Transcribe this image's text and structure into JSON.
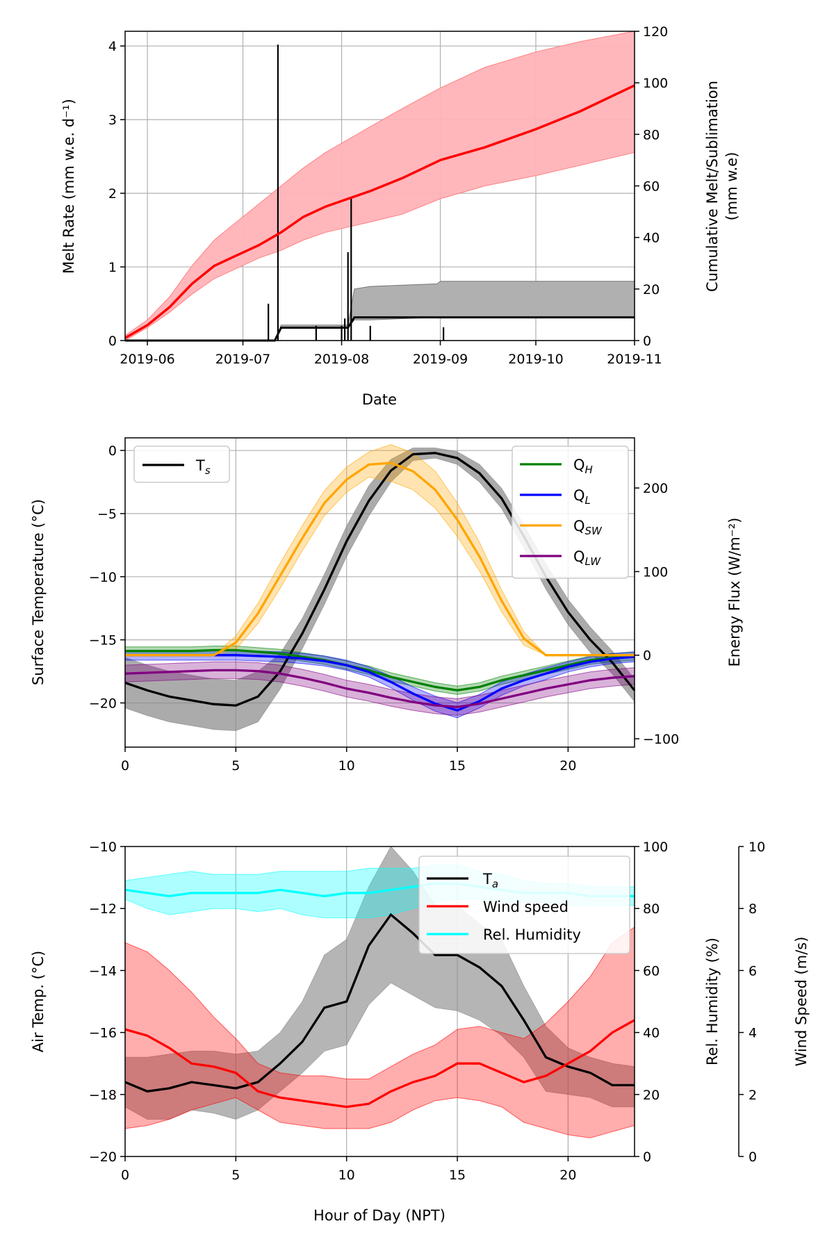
{
  "chart_data": [
    {
      "type": "line",
      "panel": "melt",
      "xlabel": "Date",
      "ylabel": "Melt Rate (mm w.e. d⁻¹)",
      "y2label": "Cumulative Melt/Sublimation",
      "y2label_units": "(mm w.e)",
      "xlim": [
        "2019-05-25",
        "2019-11-01"
      ],
      "ylim": [
        0,
        4.2
      ],
      "y2lim": [
        0,
        120
      ],
      "x_ticks": [
        "2019-06",
        "2019-07",
        "2019-08",
        "2019-09",
        "2019-10",
        "2019-11"
      ],
      "x_tick_dates": [
        "2019-06-01",
        "2019-07-01",
        "2019-08-01",
        "2019-09-01",
        "2019-10-01",
        "2019-11-01"
      ],
      "y_ticks": [
        0,
        1,
        2,
        3,
        4
      ],
      "y2_ticks": [
        0,
        20,
        40,
        60,
        80,
        100,
        120
      ],
      "grid": true,
      "colors": {
        "melt_cum": "#ff0000",
        "melt_band": "#ffb3b8",
        "subl_band": "#b0b0b0",
        "rate": "#000000"
      },
      "series": [
        {
          "axis": "y2",
          "x": [
            "2019-05-25",
            "2019-06-01",
            "2019-06-08",
            "2019-06-15",
            "2019-06-22",
            "2019-06-29",
            "2019-07-06",
            "2019-07-13",
            "2019-07-20",
            "2019-07-27",
            "2019-08-03",
            "2019-08-10",
            "2019-08-20",
            "2019-09-01",
            "2019-09-15",
            "2019-10-01",
            "2019-10-15",
            "2019-11-01"
          ],
          "y": [
            1,
            6,
            13,
            22,
            29,
            33,
            37,
            42,
            48,
            52,
            55,
            58,
            63,
            70,
            75,
            82,
            89,
            99
          ],
          "lower": [
            0,
            5,
            11,
            18,
            24,
            28,
            32,
            35,
            39,
            42,
            44,
            46,
            49,
            55,
            60,
            64,
            68,
            73
          ],
          "upper": [
            2,
            8,
            17,
            29,
            39,
            46,
            53,
            60,
            67,
            73,
            78,
            83,
            90,
            98,
            106,
            112,
            116,
            120
          ]
        },
        {
          "axis": "y2",
          "x": [
            "2019-05-25",
            "2019-07-11",
            "2019-07-13",
            "2019-08-03",
            "2019-08-05",
            "2019-08-10",
            "2019-08-31",
            "2019-09-01",
            "2019-10-15",
            "2019-11-01"
          ],
          "y": [
            0,
            0,
            5,
            5,
            9,
            9,
            9,
            9,
            9,
            9
          ],
          "lower": [
            0,
            0,
            5,
            5,
            8,
            8,
            9,
            9,
            9,
            9
          ],
          "upper": [
            0,
            0,
            6,
            6,
            20,
            21,
            22,
            23,
            23,
            23
          ]
        },
        {
          "axis": "y",
          "style": "spikes",
          "x": [
            "2019-07-09",
            "2019-07-12",
            "2019-07-24",
            "2019-08-01",
            "2019-08-02",
            "2019-08-03",
            "2019-08-04",
            "2019-08-10",
            "2019-09-02"
          ],
          "y": [
            0.5,
            4.02,
            0.2,
            0.2,
            0.3,
            1.2,
            1.95,
            0.2,
            0.18
          ]
        }
      ]
    },
    {
      "type": "line",
      "panel": "energy",
      "ylabel": "Surface Temperature (°C)",
      "y2label": "Energy Flux (W/m⁻²)",
      "xlim": [
        0,
        23
      ],
      "ylim": [
        -23.5,
        1
      ],
      "y2lim": [
        -110,
        260
      ],
      "x_ticks": [
        0,
        5,
        10,
        15,
        20
      ],
      "y_ticks": [
        0,
        -5,
        -10,
        -15,
        -20
      ],
      "y2_ticks": [
        200,
        100,
        0,
        -100
      ],
      "grid": true,
      "legend_left": "upper-left",
      "legend_right": "upper-right",
      "series": [
        {
          "key": "Ts",
          "label_main": "T",
          "label_sub": "s",
          "axis": "y",
          "color": "#000000",
          "band_color": "#888888",
          "y": [
            -18.4,
            -19.0,
            -19.5,
            -19.8,
            -20.1,
            -20.2,
            -19.5,
            -17.5,
            -14.5,
            -11.0,
            -7.2,
            -4.0,
            -1.6,
            -0.3,
            -0.2,
            -0.6,
            -1.8,
            -3.8,
            -6.8,
            -10.0,
            -12.8,
            -15.0,
            -16.8,
            -19.0
          ],
          "band": [
            2.0,
            2.0,
            2.0,
            2.0,
            2.0,
            2.0,
            2.0,
            1.4,
            1.2,
            1.2,
            1.2,
            1.2,
            0.9,
            0.5,
            0.4,
            0.5,
            0.7,
            0.8,
            0.9,
            1.0,
            1.0,
            1.0,
            0.9,
            0.9
          ]
        },
        {
          "key": "QH",
          "label_main": "Q",
          "label_sub": "H",
          "axis": "y2",
          "color": "#008000",
          "y": [
            5,
            5,
            5,
            5,
            6,
            6,
            4,
            2,
            -2,
            -6,
            -12,
            -18,
            -26,
            -32,
            -38,
            -42,
            -38,
            -30,
            -24,
            -18,
            -12,
            -6,
            -3,
            -1
          ],
          "band": [
            5,
            5,
            5,
            5,
            5,
            5,
            5,
            5,
            5,
            5,
            5,
            5,
            5,
            5,
            5,
            5,
            5,
            5,
            5,
            5,
            5,
            5,
            5,
            5
          ]
        },
        {
          "key": "QL",
          "label_main": "Q",
          "label_sub": "L",
          "axis": "y2",
          "color": "#0000ff",
          "y": [
            0,
            0,
            0,
            0,
            0,
            0,
            -1,
            -2,
            -4,
            -7,
            -12,
            -20,
            -32,
            -46,
            -58,
            -66,
            -55,
            -40,
            -30,
            -22,
            -14,
            -8,
            -4,
            -2
          ],
          "band": [
            6,
            6,
            6,
            6,
            6,
            6,
            6,
            6,
            6,
            6,
            6,
            6,
            7,
            8,
            9,
            9,
            8,
            8,
            7,
            7,
            6,
            6,
            6,
            6
          ]
        },
        {
          "key": "QSW",
          "label_main": "Q",
          "label_sub": "SW",
          "axis": "y2",
          "color": "#ffa500",
          "y": [
            0,
            0,
            0,
            0,
            0,
            15,
            50,
            95,
            140,
            182,
            210,
            228,
            230,
            220,
            198,
            162,
            118,
            65,
            20,
            0,
            0,
            0,
            0,
            0
          ],
          "band": [
            0,
            0,
            0,
            0,
            0,
            8,
            12,
            15,
            15,
            15,
            15,
            15,
            22,
            22,
            22,
            20,
            17,
            13,
            8,
            0,
            0,
            0,
            0,
            0
          ]
        },
        {
          "key": "QLW",
          "label_main": "Q",
          "label_sub": "LW",
          "axis": "y2",
          "color": "#800080",
          "y": [
            -22,
            -21,
            -20,
            -19,
            -18,
            -18,
            -19,
            -22,
            -27,
            -33,
            -40,
            -45,
            -51,
            -56,
            -60,
            -62,
            -58,
            -52,
            -46,
            -40,
            -35,
            -30,
            -27,
            -25
          ],
          "band": [
            10,
            10,
            10,
            10,
            10,
            10,
            10,
            10,
            10,
            10,
            10,
            10,
            10,
            10,
            10,
            10,
            10,
            10,
            10,
            10,
            10,
            10,
            10,
            10
          ]
        }
      ]
    },
    {
      "type": "line",
      "panel": "met",
      "xlabel": "Hour of Day (NPT)",
      "ylabel": "Air Temp. (°C)",
      "y2label": "Rel. Humidity (%)",
      "y3label": "Wind Speed (m/s)",
      "xlim": [
        0,
        23
      ],
      "ylim": [
        -20,
        -10
      ],
      "y2lim": [
        0,
        100
      ],
      "y3lim": [
        0,
        10
      ],
      "x_ticks": [
        0,
        5,
        10,
        15,
        20
      ],
      "y_ticks": [
        -10,
        -12,
        -14,
        -16,
        -18,
        -20
      ],
      "y2_ticks": [
        100,
        80,
        60,
        40,
        20,
        0
      ],
      "y3_ticks": [
        10,
        8,
        6,
        4,
        2,
        0
      ],
      "grid": true,
      "legend": "upper-right",
      "series": [
        {
          "key": "Ta",
          "label_main": "T",
          "label_sub": "a",
          "axis": "y",
          "color": "#000000",
          "band_color": "#888888",
          "y": [
            -17.6,
            -17.9,
            -17.8,
            -17.6,
            -17.7,
            -17.8,
            -17.6,
            -17.0,
            -16.3,
            -15.2,
            -15.0,
            -13.2,
            -12.2,
            -12.8,
            -13.5,
            -13.5,
            -13.9,
            -14.5,
            -15.6,
            -16.8,
            -17.1,
            -17.3,
            -17.7,
            -17.7
          ],
          "lower": [
            -18.4,
            -18.8,
            -18.8,
            -18.5,
            -18.6,
            -18.8,
            -18.5,
            -17.9,
            -17.3,
            -16.6,
            -16.4,
            -15.1,
            -14.4,
            -14.8,
            -15.2,
            -15.3,
            -15.6,
            -16.1,
            -16.8,
            -17.9,
            -18.0,
            -18.1,
            -18.4,
            -18.4
          ],
          "upper": [
            -16.8,
            -16.8,
            -16.7,
            -16.6,
            -16.6,
            -16.7,
            -16.6,
            -16.0,
            -15.0,
            -13.5,
            -13.0,
            -11.3,
            -10.0,
            -10.8,
            -11.9,
            -11.9,
            -12.5,
            -13.0,
            -14.5,
            -15.8,
            -16.5,
            -16.8,
            -17.0,
            -17.1
          ]
        },
        {
          "key": "wind",
          "label": "Wind speed",
          "axis": "y3",
          "color": "#ff0000",
          "y": [
            4.1,
            3.9,
            3.5,
            3.0,
            2.9,
            2.7,
            2.1,
            1.9,
            1.8,
            1.7,
            1.6,
            1.7,
            2.1,
            2.4,
            2.6,
            3.0,
            3.0,
            2.7,
            2.4,
            2.6,
            3.0,
            3.4,
            4.0,
            4.4
          ],
          "lower": [
            0.9,
            1.0,
            1.2,
            1.5,
            1.7,
            1.9,
            1.5,
            1.1,
            1.0,
            0.9,
            0.9,
            0.9,
            1.1,
            1.5,
            1.8,
            1.9,
            1.8,
            1.6,
            1.1,
            0.9,
            0.7,
            0.6,
            0.8,
            1.0
          ],
          "upper": [
            6.9,
            6.6,
            6.0,
            5.3,
            4.5,
            3.8,
            3.0,
            2.7,
            2.6,
            2.6,
            2.5,
            2.5,
            2.9,
            3.3,
            3.6,
            4.1,
            4.2,
            4.0,
            3.8,
            4.3,
            5.0,
            5.8,
            6.9,
            7.4
          ]
        },
        {
          "key": "rh",
          "label": "Rel. Humidity",
          "axis": "y2",
          "color": "#00ffff",
          "y": [
            86,
            85,
            84,
            85,
            85,
            85,
            85,
            86,
            85,
            84,
            85,
            85,
            86,
            87,
            88,
            88,
            87,
            86,
            85,
            85,
            85,
            84,
            84,
            84
          ],
          "lower": [
            83,
            80,
            78,
            79,
            80,
            80,
            79,
            80,
            78,
            77,
            77,
            77,
            78,
            80,
            82,
            83,
            83,
            82,
            82,
            82,
            81,
            81,
            81,
            81
          ],
          "upper": [
            89,
            90,
            91,
            92,
            91,
            91,
            91,
            92,
            92,
            92,
            92,
            93,
            93,
            93,
            94,
            94,
            92,
            91,
            89,
            88,
            88,
            87,
            87,
            87
          ]
        }
      ]
    }
  ]
}
